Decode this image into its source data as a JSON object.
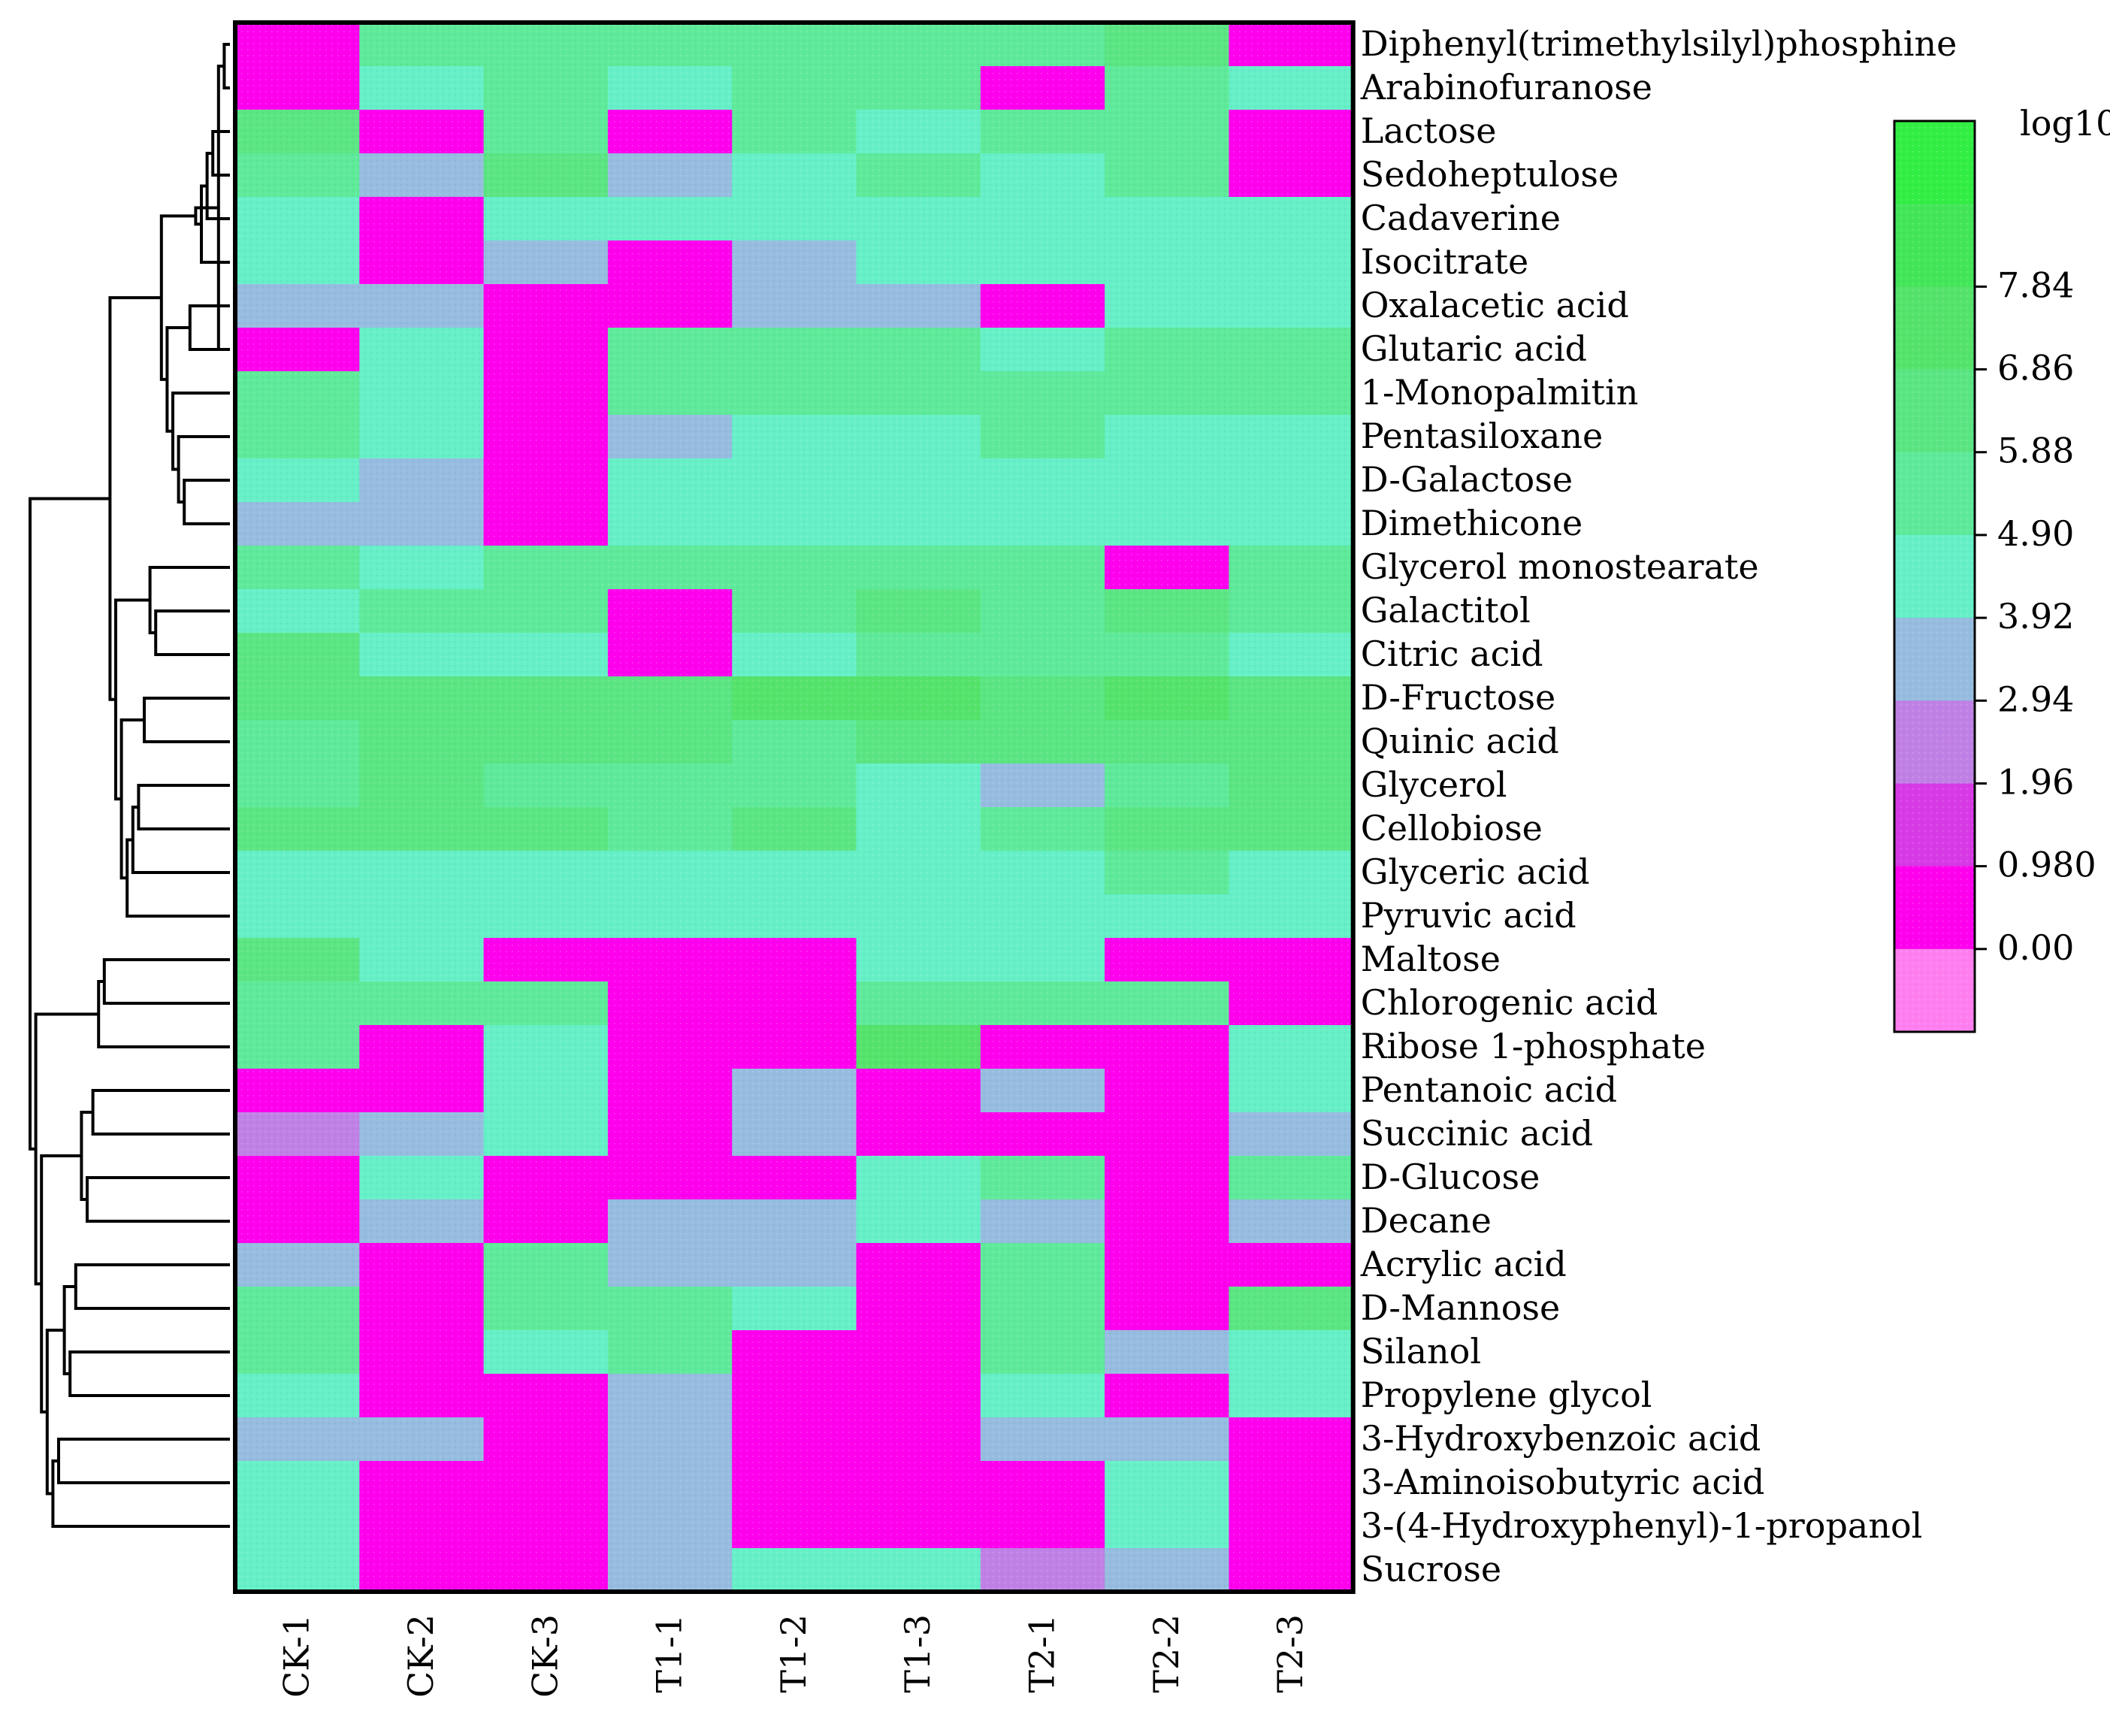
{
  "chart_data": {
    "type": "heatmap",
    "title": "",
    "colorbar": {
      "title": "log10",
      "ticks": [
        "7.84",
        "6.86",
        "5.88",
        "4.90",
        "3.92",
        "2.94",
        "1.96",
        "0.980",
        "0.00"
      ],
      "tick_values": [
        7.84,
        6.86,
        5.88,
        4.9,
        3.92,
        2.94,
        1.96,
        0.98,
        0.0
      ],
      "range": [
        -0.98,
        9.8
      ],
      "bands": [
        {
          "from": 8.82,
          "to": 9.8,
          "color": "#33ee44"
        },
        {
          "from": 7.84,
          "to": 8.82,
          "color": "#44e659"
        },
        {
          "from": 6.86,
          "to": 7.84,
          "color": "#55e36c"
        },
        {
          "from": 5.88,
          "to": 6.86,
          "color": "#5be583"
        },
        {
          "from": 4.9,
          "to": 5.88,
          "color": "#5eea9a"
        },
        {
          "from": 3.92,
          "to": 4.9,
          "color": "#66f0c8"
        },
        {
          "from": 2.94,
          "to": 3.92,
          "color": "#96bce0"
        },
        {
          "from": 1.96,
          "to": 2.94,
          "color": "#c081e6"
        },
        {
          "from": 0.98,
          "to": 1.96,
          "color": "#d83ae6"
        },
        {
          "from": 0.0,
          "to": 0.98,
          "color": "#ff00ee"
        },
        {
          "from": -0.98,
          "to": 0.0,
          "color": "#ff7ff0"
        }
      ]
    },
    "columns": [
      "CK-1",
      "CK-2",
      "CK-3",
      "T1-1",
      "T1-2",
      "T1-3",
      "T2-1",
      "T2-2",
      "T2-3"
    ],
    "rows": [
      "Diphenyl(trimethylsilyl)phosphine",
      "Arabinofuranose",
      "Lactose",
      "Sedoheptulose",
      "Cadaverine",
      "Isocitrate",
      "Oxalacetic acid",
      "Glutaric acid",
      "1-Monopalmitin",
      "Pentasiloxane",
      "D-Galactose",
      "Dimethicone",
      "Glycerol monostearate",
      "Galactitol",
      "Citric acid",
      "D-Fructose",
      "Quinic acid",
      "Glycerol",
      "Cellobiose",
      "Glyceric acid",
      "Pyruvic acid",
      "Maltose",
      "Chlorogenic acid",
      "Ribose 1-phosphate",
      "Pentanoic acid",
      "Succinic acid",
      "D-Glucose",
      "Decane",
      "Acrylic acid",
      "D-Mannose",
      "Silanol",
      "Propylene glycol",
      "3-Hydroxybenzoic acid",
      "3-Aminoisobutyric acid",
      "3-(4-Hydroxyphenyl)-1-propanol",
      "Sucrose"
    ],
    "values": [
      [
        0.5,
        5.2,
        5.2,
        5.2,
        5.2,
        5.2,
        5.2,
        6.2,
        0.5
      ],
      [
        0.5,
        4.4,
        5.2,
        4.4,
        5.2,
        5.2,
        0.5,
        5.2,
        4.4
      ],
      [
        6.2,
        0.5,
        5.2,
        0.5,
        5.2,
        4.4,
        5.2,
        5.2,
        0.5
      ],
      [
        5.4,
        3.4,
        6.2,
        3.4,
        4.4,
        5.2,
        4.4,
        5.2,
        0.5
      ],
      [
        4.4,
        0.5,
        4.4,
        4.4,
        4.4,
        4.4,
        4.4,
        4.4,
        4.4
      ],
      [
        4.4,
        0.5,
        3.4,
        0.5,
        3.4,
        4.4,
        4.4,
        4.4,
        4.4
      ],
      [
        3.4,
        3.4,
        0.5,
        0.5,
        3.4,
        3.4,
        0.5,
        4.4,
        4.4
      ],
      [
        0.5,
        4.4,
        0.5,
        5.4,
        5.4,
        5.4,
        4.4,
        5.4,
        5.4
      ],
      [
        5.4,
        4.4,
        0.5,
        5.4,
        5.4,
        5.4,
        5.4,
        5.4,
        5.4
      ],
      [
        5.4,
        4.4,
        0.5,
        3.4,
        4.4,
        4.4,
        5.4,
        4.4,
        4.4
      ],
      [
        4.4,
        3.4,
        0.5,
        4.4,
        4.4,
        4.4,
        4.4,
        4.4,
        4.4
      ],
      [
        3.4,
        3.4,
        0.5,
        4.4,
        4.4,
        4.4,
        4.4,
        4.4,
        4.4
      ],
      [
        5.4,
        4.4,
        5.4,
        5.4,
        5.4,
        5.4,
        5.4,
        0.5,
        5.4
      ],
      [
        4.4,
        5.4,
        5.4,
        0.5,
        5.4,
        6.2,
        5.4,
        6.2,
        5.4
      ],
      [
        6.2,
        4.4,
        4.4,
        0.5,
        4.4,
        5.4,
        5.4,
        5.4,
        4.4
      ],
      [
        6.2,
        6.2,
        6.2,
        6.2,
        7.2,
        7.3,
        6.2,
        7.3,
        6.2
      ],
      [
        5.4,
        6.2,
        6.2,
        6.2,
        5.4,
        6.2,
        6.2,
        6.2,
        6.2
      ],
      [
        5.4,
        6.2,
        5.4,
        5.4,
        5.4,
        4.4,
        3.4,
        5.4,
        6.2
      ],
      [
        6.2,
        6.2,
        6.2,
        5.4,
        6.2,
        4.4,
        5.4,
        6.2,
        6.2
      ],
      [
        4.4,
        4.4,
        4.4,
        4.4,
        4.4,
        4.4,
        4.4,
        5.4,
        4.4
      ],
      [
        4.4,
        4.4,
        4.4,
        4.4,
        4.4,
        4.4,
        4.4,
        4.4,
        4.4
      ],
      [
        6.2,
        4.4,
        0.5,
        0.5,
        0.5,
        4.4,
        4.4,
        0.5,
        0.5
      ],
      [
        5.4,
        5.4,
        5.4,
        0.5,
        0.5,
        5.4,
        5.4,
        5.4,
        0.5
      ],
      [
        5.4,
        0.5,
        4.4,
        0.5,
        0.5,
        7.2,
        0.5,
        0.5,
        4.4
      ],
      [
        0.5,
        0.5,
        4.4,
        0.5,
        3.4,
        0.5,
        3.4,
        0.5,
        4.4
      ],
      [
        2.4,
        3.4,
        4.4,
        0.5,
        3.4,
        0.5,
        0.5,
        0.5,
        3.4
      ],
      [
        0.5,
        4.4,
        0.5,
        0.5,
        0.5,
        4.4,
        5.4,
        0.5,
        5.4
      ],
      [
        0.5,
        3.4,
        0.5,
        3.4,
        3.4,
        4.4,
        3.4,
        0.5,
        3.4
      ],
      [
        3.4,
        0.5,
        5.4,
        3.4,
        3.4,
        0.5,
        5.4,
        0.5,
        0.5
      ],
      [
        5.4,
        0.5,
        5.4,
        5.4,
        4.4,
        0.5,
        5.4,
        0.5,
        6.4
      ],
      [
        5.4,
        0.5,
        4.4,
        5.4,
        0.5,
        0.5,
        5.4,
        3.4,
        4.4
      ],
      [
        4.4,
        0.5,
        0.5,
        3.4,
        0.5,
        0.5,
        4.4,
        0.5,
        4.4
      ],
      [
        3.4,
        3.4,
        0.5,
        3.4,
        0.5,
        0.5,
        3.4,
        3.4,
        0.5
      ],
      [
        4.4,
        0.5,
        0.5,
        3.4,
        0.5,
        0.5,
        0.5,
        4.4,
        0.5
      ],
      [
        4.4,
        0.5,
        0.5,
        3.4,
        0.5,
        0.5,
        0.5,
        4.4,
        0.5
      ],
      [
        4.4,
        0.5,
        0.5,
        3.4,
        4.4,
        4.4,
        2.4,
        3.4,
        0.5
      ]
    ],
    "row_dendrogram": [
      [
        0,
        1
      ],
      [
        -1,
        7
      ],
      [
        2,
        3
      ],
      [
        -3,
        4
      ],
      [
        -4,
        5
      ],
      [
        -2,
        -5
      ],
      [
        6,
        7
      ],
      [
        10,
        11
      ],
      [
        9,
        -8
      ],
      [
        8,
        -9
      ],
      [
        -7,
        -10
      ],
      [
        -6,
        -11
      ],
      [
        13,
        14
      ],
      [
        12,
        -13
      ],
      [
        15,
        16
      ],
      [
        17,
        18
      ],
      [
        -16,
        19
      ],
      [
        -17,
        20
      ],
      [
        -15,
        -18
      ],
      [
        -14,
        -19
      ],
      [
        -12,
        -20
      ],
      [
        21,
        22
      ],
      [
        -22,
        23
      ],
      [
        24,
        25
      ],
      [
        26,
        27
      ],
      [
        -24,
        -25
      ],
      [
        28,
        29
      ],
      [
        30,
        31
      ],
      [
        -27,
        -28
      ],
      [
        32,
        33
      ],
      [
        -30,
        34
      ],
      [
        -29,
        -31
      ],
      [
        -26,
        -32
      ],
      [
        -23,
        -33
      ],
      [
        -21,
        -34
      ]
    ]
  }
}
